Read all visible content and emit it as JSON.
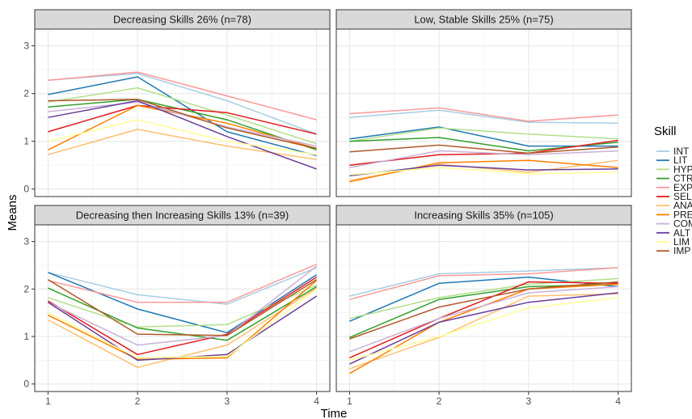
{
  "chart_data": {
    "type": "line",
    "x": [
      1,
      2,
      3,
      4
    ],
    "xlabel": "Time",
    "ylabel": "Means",
    "xlim": [
      1,
      4
    ],
    "ylim": [
      0,
      3
    ],
    "x_ticks": [
      "1",
      "2",
      "3",
      "4"
    ],
    "y_ticks": [
      "0",
      "1",
      "2",
      "3"
    ],
    "grid": true,
    "legend": {
      "title": "Skill",
      "position": "right",
      "entries": [
        {
          "name": "INT",
          "color": "#a6cee3"
        },
        {
          "name": "LIT",
          "color": "#1f78b4"
        },
        {
          "name": "HYP",
          "color": "#b2df8a"
        },
        {
          "name": "CTR",
          "color": "#33a02c"
        },
        {
          "name": "EXP",
          "color": "#fb9a99"
        },
        {
          "name": "SEL",
          "color": "#e31a1c"
        },
        {
          "name": "ANA",
          "color": "#fdbf6f"
        },
        {
          "name": "PRE",
          "color": "#ff7f00"
        },
        {
          "name": "COM",
          "color": "#cab2d6"
        },
        {
          "name": "ALT",
          "color": "#6a3d9a"
        },
        {
          "name": "LIM",
          "color": "#ffff99"
        },
        {
          "name": "IMP",
          "color": "#b15928"
        }
      ]
    },
    "panels": [
      {
        "title": "Decreasing Skills 26% (n=78)",
        "series": [
          {
            "name": "INT",
            "values": [
              2.28,
              2.42,
              1.85,
              1.15
            ]
          },
          {
            "name": "LIT",
            "values": [
              1.98,
              2.35,
              1.2,
              0.7
            ]
          },
          {
            "name": "HYP",
            "values": [
              1.82,
              2.12,
              1.55,
              0.95
            ]
          },
          {
            "name": "CTR",
            "values": [
              1.72,
              1.88,
              1.45,
              0.82
            ]
          },
          {
            "name": "EXP",
            "values": [
              2.28,
              2.45,
              1.95,
              1.45
            ]
          },
          {
            "name": "SEL",
            "values": [
              1.2,
              1.75,
              1.6,
              1.15
            ]
          },
          {
            "name": "ANA",
            "values": [
              0.72,
              1.25,
              0.9,
              0.62
            ]
          },
          {
            "name": "PRE",
            "values": [
              0.82,
              1.75,
              1.38,
              0.85
            ]
          },
          {
            "name": "COM",
            "values": [
              1.62,
              1.82,
              1.3,
              0.9
            ]
          },
          {
            "name": "ALT",
            "values": [
              1.5,
              1.85,
              1.1,
              0.42
            ]
          },
          {
            "name": "LIM",
            "values": [
              1.0,
              1.45,
              1.0,
              0.72
            ]
          },
          {
            "name": "IMP",
            "values": [
              1.85,
              1.88,
              1.28,
              0.85
            ]
          }
        ]
      },
      {
        "title": "Low, Stable Skills 25% (n=75)",
        "series": [
          {
            "name": "INT",
            "values": [
              1.5,
              1.65,
              1.4,
              1.38
            ]
          },
          {
            "name": "LIT",
            "values": [
              1.05,
              1.3,
              0.9,
              0.9
            ]
          },
          {
            "name": "HYP",
            "values": [
              1.0,
              1.28,
              1.15,
              1.05
            ]
          },
          {
            "name": "CTR",
            "values": [
              1.0,
              1.08,
              0.8,
              0.98
            ]
          },
          {
            "name": "EXP",
            "values": [
              1.58,
              1.7,
              1.42,
              1.55
            ]
          },
          {
            "name": "SEL",
            "values": [
              0.5,
              0.72,
              0.75,
              1.02
            ]
          },
          {
            "name": "ANA",
            "values": [
              0.18,
              0.52,
              0.35,
              0.6
            ]
          },
          {
            "name": "PRE",
            "values": [
              0.15,
              0.55,
              0.6,
              0.45
            ]
          },
          {
            "name": "COM",
            "values": [
              0.45,
              0.8,
              0.72,
              0.8
            ]
          },
          {
            "name": "ALT",
            "values": [
              0.28,
              0.5,
              0.4,
              0.42
            ]
          },
          {
            "name": "LIM",
            "values": [
              0.3,
              0.45,
              0.32,
              0.35
            ]
          },
          {
            "name": "IMP",
            "values": [
              0.78,
              0.92,
              0.75,
              0.88
            ]
          }
        ]
      },
      {
        "title": "Decreasing then Increasing Skills 13% (n=39)",
        "series": [
          {
            "name": "INT",
            "values": [
              2.35,
              1.88,
              1.68,
              2.45
            ]
          },
          {
            "name": "LIT",
            "values": [
              2.35,
              1.58,
              1.08,
              2.3
            ]
          },
          {
            "name": "HYP",
            "values": [
              1.82,
              1.2,
              1.25,
              2.08
            ]
          },
          {
            "name": "CTR",
            "values": [
              2.02,
              1.18,
              0.92,
              2.05
            ]
          },
          {
            "name": "EXP",
            "values": [
              2.18,
              1.72,
              1.72,
              2.52
            ]
          },
          {
            "name": "SEL",
            "values": [
              1.75,
              0.62,
              1.05,
              2.25
            ]
          },
          {
            "name": "ANA",
            "values": [
              1.35,
              0.35,
              0.82,
              2.02
            ]
          },
          {
            "name": "PRE",
            "values": [
              1.45,
              0.52,
              0.55,
              2.18
            ]
          },
          {
            "name": "COM",
            "values": [
              1.72,
              0.82,
              1.02,
              2.48
            ]
          },
          {
            "name": "ALT",
            "values": [
              1.72,
              0.5,
              0.62,
              1.85
            ]
          },
          {
            "name": "LIM",
            "values": [
              1.5,
              0.55,
              0.58,
              2.0
            ]
          },
          {
            "name": "IMP",
            "values": [
              2.2,
              1.05,
              1.02,
              2.2
            ]
          }
        ]
      },
      {
        "title": "Increasing Skills 35% (n=105)",
        "series": [
          {
            "name": "INT",
            "values": [
              1.85,
              2.32,
              2.38,
              2.45
            ]
          },
          {
            "name": "LIT",
            "values": [
              1.32,
              2.12,
              2.25,
              2.05
            ]
          },
          {
            "name": "HYP",
            "values": [
              1.38,
              1.82,
              2.1,
              2.22
            ]
          },
          {
            "name": "CTR",
            "values": [
              0.98,
              1.78,
              2.05,
              2.1
            ]
          },
          {
            "name": "EXP",
            "values": [
              1.78,
              2.28,
              2.32,
              2.45
            ]
          },
          {
            "name": "SEL",
            "values": [
              0.55,
              1.38,
              2.15,
              2.12
            ]
          },
          {
            "name": "ANA",
            "values": [
              0.32,
              0.98,
              1.85,
              1.9
            ]
          },
          {
            "name": "PRE",
            "values": [
              0.22,
              1.3,
              2.0,
              2.1
            ]
          },
          {
            "name": "COM",
            "values": [
              0.68,
              1.38,
              1.92,
              2.05
            ]
          },
          {
            "name": "ALT",
            "values": [
              0.42,
              1.3,
              1.72,
              1.92
            ]
          },
          {
            "name": "LIM",
            "values": [
              0.5,
              1.0,
              1.6,
              1.82
            ]
          },
          {
            "name": "IMP",
            "values": [
              0.95,
              1.62,
              2.0,
              2.15
            ]
          }
        ]
      }
    ]
  }
}
